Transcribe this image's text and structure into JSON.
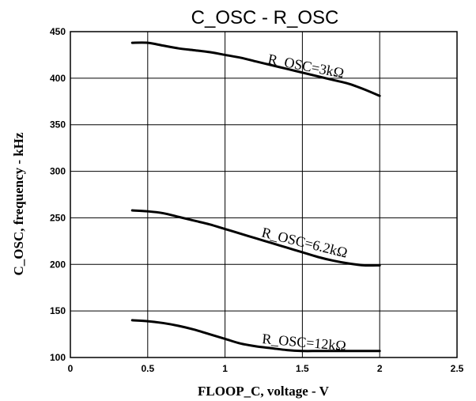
{
  "chart_data": {
    "type": "line",
    "title": "C_OSC - R_OSC",
    "xlabel": "FLOOP_C, voltage - V",
    "ylabel": "C_OSC, frequency - kHz",
    "xlim": [
      0,
      2.5
    ],
    "ylim": [
      100,
      450
    ],
    "x_ticks": [
      "0",
      "0.5",
      "1",
      "1.5",
      "2",
      "2.5"
    ],
    "y_ticks": [
      "100",
      "150",
      "200",
      "250",
      "300",
      "350",
      "400",
      "450"
    ],
    "grid": true,
    "legend": "inline labels",
    "series": [
      {
        "name": "R_OSC=3kΩ",
        "x": [
          0.4,
          0.5,
          0.6,
          0.7,
          0.8,
          0.9,
          1.0,
          1.1,
          1.2,
          1.3,
          1.4,
          1.5,
          1.6,
          1.7,
          1.8,
          1.9,
          2.0
        ],
        "y": [
          438,
          438,
          435,
          432,
          430,
          428,
          425,
          422,
          418,
          414,
          410,
          406,
          402,
          398,
          394,
          388,
          381
        ]
      },
      {
        "name": "R_OSC=6.2kΩ",
        "x": [
          0.4,
          0.5,
          0.6,
          0.7,
          0.8,
          0.9,
          1.0,
          1.1,
          1.2,
          1.3,
          1.4,
          1.5,
          1.6,
          1.7,
          1.8,
          1.9,
          2.0
        ],
        "y": [
          258,
          257,
          255,
          251,
          247,
          243,
          238,
          233,
          228,
          223,
          218,
          213,
          208,
          204,
          201,
          199,
          199
        ]
      },
      {
        "name": "R_OSC=12kΩ",
        "x": [
          0.4,
          0.5,
          0.6,
          0.7,
          0.8,
          0.9,
          1.0,
          1.1,
          1.2,
          1.3,
          1.4,
          1.5,
          1.6,
          1.7,
          1.8,
          1.9,
          2.0
        ],
        "y": [
          140,
          139,
          137,
          134,
          130,
          125,
          120,
          115,
          112,
          110,
          108,
          107,
          107,
          107,
          107,
          107,
          107
        ]
      }
    ]
  }
}
